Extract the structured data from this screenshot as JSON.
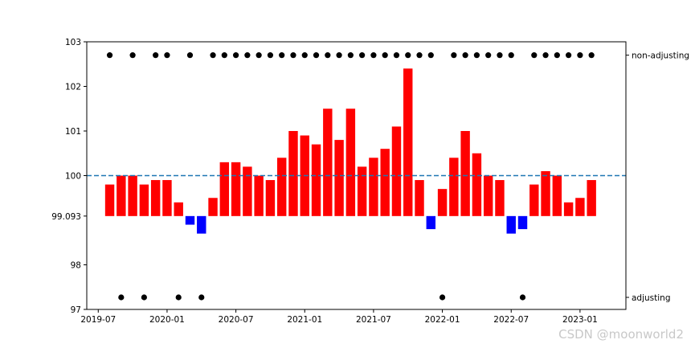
{
  "chart_data": {
    "type": "bar",
    "x": [
      "2019-08",
      "2019-09",
      "2019-10",
      "2019-11",
      "2019-12",
      "2020-01",
      "2020-02",
      "2020-03",
      "2020-04",
      "2020-05",
      "2020-06",
      "2020-07",
      "2020-08",
      "2020-09",
      "2020-10",
      "2020-11",
      "2020-12",
      "2021-01",
      "2021-02",
      "2021-03",
      "2021-04",
      "2021-05",
      "2021-06",
      "2021-07",
      "2021-08",
      "2021-09",
      "2021-10",
      "2021-11",
      "2021-12",
      "2022-01",
      "2022-02",
      "2022-03",
      "2022-04",
      "2022-05",
      "2022-06",
      "2022-07",
      "2022-08",
      "2022-09",
      "2022-10",
      "2022-11",
      "2022-12",
      "2023-01",
      "2023-02"
    ],
    "values": [
      99.8,
      100.0,
      100.0,
      99.8,
      99.9,
      99.9,
      99.4,
      98.9,
      98.7,
      99.5,
      100.3,
      100.3,
      100.2,
      100.0,
      99.9,
      100.4,
      101.0,
      100.9,
      100.7,
      101.5,
      100.8,
      101.5,
      100.2,
      100.4,
      100.6,
      101.1,
      102.4,
      99.9,
      98.8,
      99.7,
      100.4,
      101.0,
      100.5,
      100.0,
      99.9,
      98.7,
      98.8,
      99.8,
      100.1,
      100.0,
      99.4,
      99.5,
      99.9
    ],
    "baseline": 99.093,
    "bar_colors": {
      "above": "#ff0000",
      "below": "#0000ff"
    },
    "reference_line": {
      "y": 100,
      "color": "#1f77b4",
      "style": "dashed"
    },
    "markers": {
      "color": "#000000",
      "non_adjusting_y": 102.7,
      "adjusting_y": 97.27,
      "states": [
        "non-adjusting",
        "adjusting",
        "non-adjusting",
        "adjusting",
        "non-adjusting",
        "non-adjusting",
        "adjusting",
        "non-adjusting",
        "adjusting",
        "non-adjusting",
        "non-adjusting",
        "non-adjusting",
        "non-adjusting",
        "non-adjusting",
        "non-adjusting",
        "non-adjusting",
        "non-adjusting",
        "non-adjusting",
        "non-adjusting",
        "non-adjusting",
        "non-adjusting",
        "non-adjusting",
        "non-adjusting",
        "non-adjusting",
        "non-adjusting",
        "non-adjusting",
        "non-adjusting",
        "non-adjusting",
        "non-adjusting",
        "adjusting",
        "non-adjusting",
        "non-adjusting",
        "non-adjusting",
        "non-adjusting",
        "non-adjusting",
        "non-adjusting",
        "adjusting",
        "non-adjusting",
        "non-adjusting",
        "non-adjusting",
        "non-adjusting",
        "non-adjusting",
        "non-adjusting"
      ]
    },
    "ylim": [
      97,
      103
    ],
    "y_ticks": [
      {
        "value": 97,
        "label": "97"
      },
      {
        "value": 98,
        "label": "98"
      },
      {
        "value": 99.093,
        "label": "99.093"
      },
      {
        "value": 100,
        "label": "100"
      },
      {
        "value": 101,
        "label": "101"
      },
      {
        "value": 102,
        "label": "102"
      },
      {
        "value": 103,
        "label": "103"
      }
    ],
    "x_ticks": [
      {
        "date": "2019-07",
        "label": "2019-07"
      },
      {
        "date": "2020-01",
        "label": "2020-01"
      },
      {
        "date": "2020-07",
        "label": "2020-07"
      },
      {
        "date": "2021-01",
        "label": "2021-01"
      },
      {
        "date": "2021-07",
        "label": "2021-07"
      },
      {
        "date": "2022-01",
        "label": "2022-01"
      },
      {
        "date": "2022-07",
        "label": "2022-07"
      },
      {
        "date": "2023-01",
        "label": "2023-01"
      }
    ],
    "xlim": [
      "2019-06",
      "2023-05"
    ],
    "right_axis_ticks": [
      {
        "value": 102.7,
        "label": "non-adjusting"
      },
      {
        "value": 97.27,
        "label": "adjusting"
      }
    ],
    "title": "",
    "xlabel": "",
    "ylabel": ""
  },
  "watermark": "CSDN @moonworld2"
}
